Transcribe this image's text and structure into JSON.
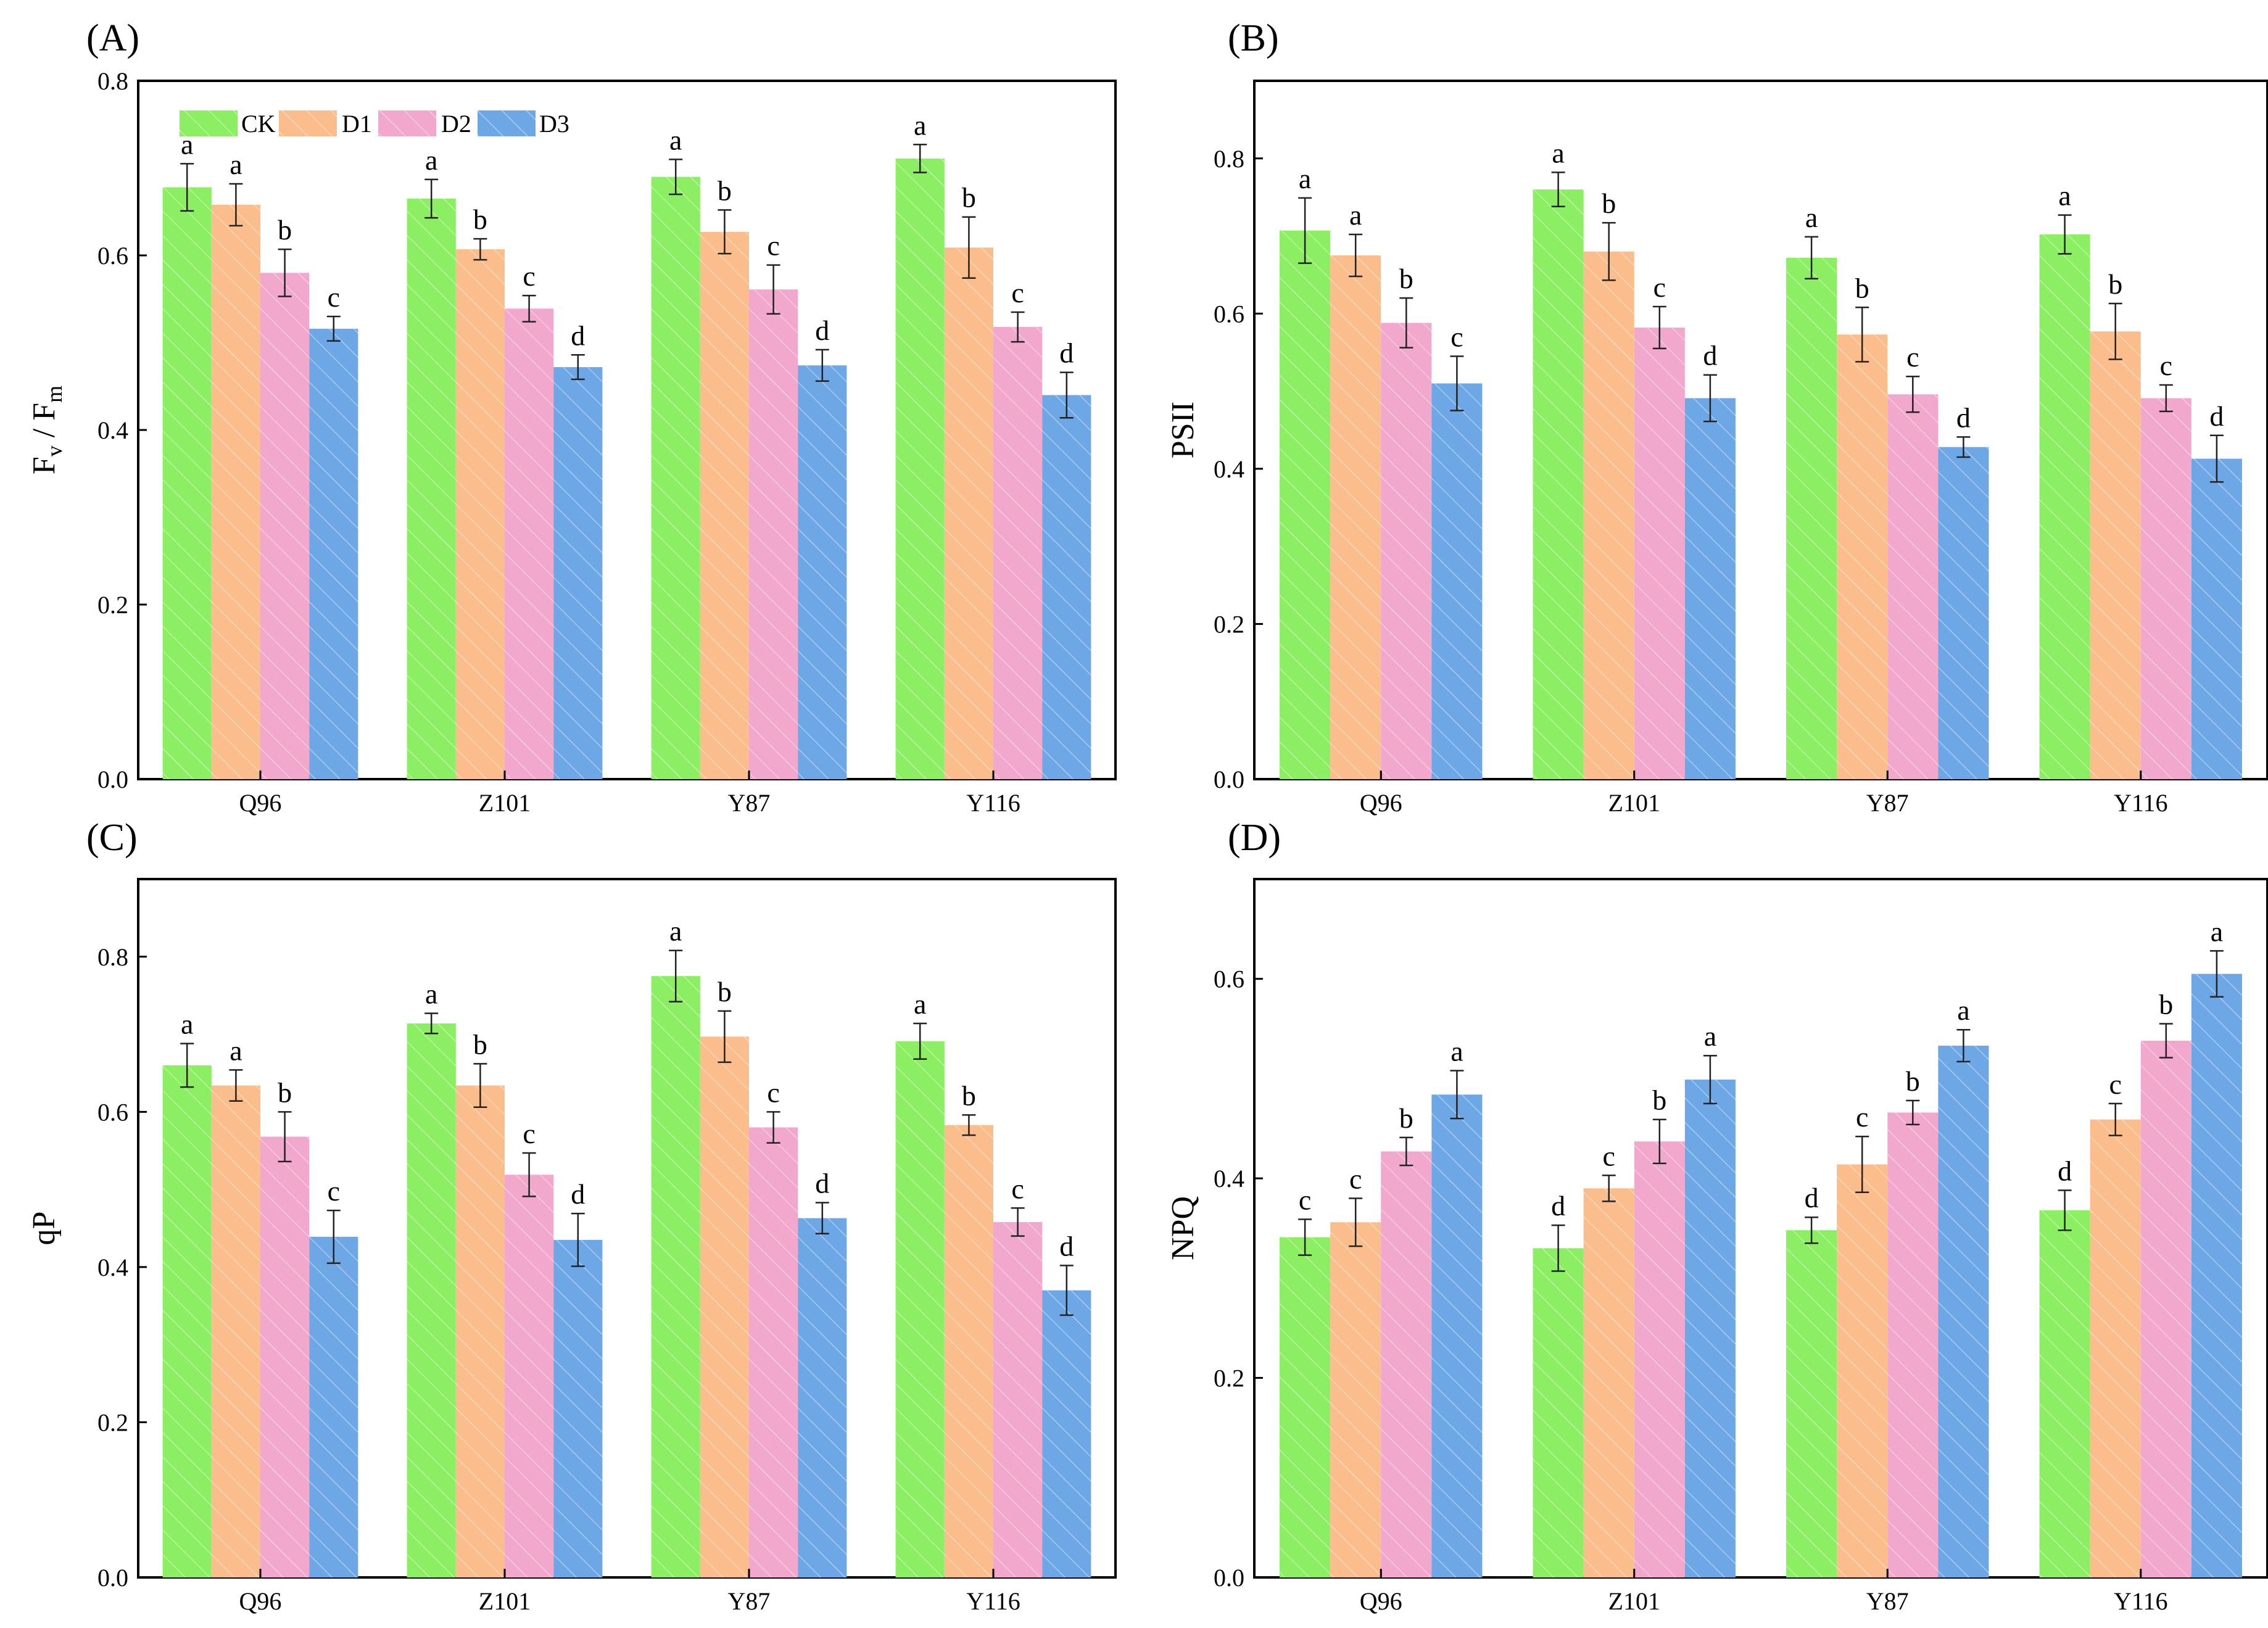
{
  "colors": {
    "CK": "#8cee62",
    "D1": "#fbbd8b",
    "D2": "#f2a7cc",
    "D3": "#6ea7e6"
  },
  "legend": {
    "placement": "top-left",
    "items": [
      "CK",
      "D1",
      "D2",
      "D3"
    ]
  },
  "chart_data": [
    {
      "type": "bar",
      "panel_label": "(A)",
      "title": "",
      "xlabel": "",
      "ylabel": "Fv / Fm",
      "ylabel_main": "F",
      "ylabel_sub1": "v",
      "ylabel_sep": " / F",
      "ylabel_sub2": "m",
      "ylim": [
        0,
        0.8
      ],
      "yticks": [
        "0.0",
        "0.2",
        "0.4",
        "0.6",
        "0.8"
      ],
      "categories": [
        "Q96",
        "Z101",
        "Y87",
        "Y116"
      ],
      "series": [
        {
          "name": "CK",
          "values": [
            0.678,
            0.665,
            0.69,
            0.711
          ],
          "errors": [
            0.027,
            0.022,
            0.02,
            0.016
          ],
          "labels": [
            "a",
            "a",
            "a",
            "a"
          ]
        },
        {
          "name": "D1",
          "values": [
            0.658,
            0.607,
            0.627,
            0.609
          ],
          "errors": [
            0.024,
            0.012,
            0.025,
            0.035
          ],
          "labels": [
            "a",
            "b",
            "b",
            "b"
          ]
        },
        {
          "name": "D2",
          "values": [
            0.58,
            0.539,
            0.561,
            0.518
          ],
          "errors": [
            0.027,
            0.015,
            0.028,
            0.017
          ],
          "labels": [
            "b",
            "c",
            "c",
            "c"
          ]
        },
        {
          "name": "D3",
          "values": [
            0.516,
            0.472,
            0.474,
            0.44
          ],
          "errors": [
            0.014,
            0.014,
            0.018,
            0.026
          ],
          "labels": [
            "c",
            "d",
            "d",
            "d"
          ]
        }
      ]
    },
    {
      "type": "bar",
      "panel_label": "(B)",
      "title": "",
      "xlabel": "",
      "ylabel": "PSII",
      "ylim": [
        0,
        0.9
      ],
      "yticks": [
        "0.0",
        "0.2",
        "0.4",
        "0.6",
        "0.8"
      ],
      "categories": [
        "Q96",
        "Z101",
        "Y87",
        "Y116"
      ],
      "series": [
        {
          "name": "CK",
          "values": [
            0.707,
            0.76,
            0.672,
            0.702
          ],
          "errors": [
            0.042,
            0.022,
            0.027,
            0.025
          ],
          "labels": [
            "a",
            "a",
            "a",
            "a"
          ]
        },
        {
          "name": "D1",
          "values": [
            0.675,
            0.68,
            0.573,
            0.577
          ],
          "errors": [
            0.027,
            0.037,
            0.035,
            0.036
          ],
          "labels": [
            "a",
            "b",
            "b",
            "b"
          ]
        },
        {
          "name": "D2",
          "values": [
            0.588,
            0.582,
            0.496,
            0.491
          ],
          "errors": [
            0.032,
            0.027,
            0.023,
            0.017
          ],
          "labels": [
            "b",
            "c",
            "c",
            "c"
          ]
        },
        {
          "name": "D3",
          "values": [
            0.51,
            0.491,
            0.428,
            0.413
          ],
          "errors": [
            0.035,
            0.03,
            0.013,
            0.03
          ],
          "labels": [
            "c",
            "d",
            "d",
            "d"
          ]
        }
      ]
    },
    {
      "type": "bar",
      "panel_label": "(C)",
      "title": "",
      "xlabel": "",
      "ylabel": "qP",
      "ylim": [
        0,
        0.9
      ],
      "yticks": [
        "0.0",
        "0.2",
        "0.4",
        "0.6",
        "0.8"
      ],
      "categories": [
        "Q96",
        "Z101",
        "Y87",
        "Y116"
      ],
      "series": [
        {
          "name": "CK",
          "values": [
            0.66,
            0.714,
            0.775,
            0.691
          ],
          "errors": [
            0.028,
            0.013,
            0.033,
            0.023
          ],
          "labels": [
            "a",
            "a",
            "a",
            "a"
          ]
        },
        {
          "name": "D1",
          "values": [
            0.634,
            0.634,
            0.697,
            0.583
          ],
          "errors": [
            0.02,
            0.028,
            0.033,
            0.013
          ],
          "labels": [
            "a",
            "b",
            "b",
            "b"
          ]
        },
        {
          "name": "D2",
          "values": [
            0.568,
            0.519,
            0.58,
            0.458
          ],
          "errors": [
            0.032,
            0.028,
            0.02,
            0.018
          ],
          "labels": [
            "b",
            "c",
            "c",
            "c"
          ]
        },
        {
          "name": "D3",
          "values": [
            0.439,
            0.435,
            0.463,
            0.37
          ],
          "errors": [
            0.034,
            0.034,
            0.02,
            0.032
          ],
          "labels": [
            "c",
            "d",
            "d",
            "d"
          ]
        }
      ]
    },
    {
      "type": "bar",
      "panel_label": "(D)",
      "title": "",
      "xlabel": "",
      "ylabel": "NPQ",
      "ylim": [
        0,
        0.7
      ],
      "yticks": [
        "0.0",
        "0.2",
        "0.4",
        "0.6"
      ],
      "categories": [
        "Q96",
        "Z101",
        "Y87",
        "Y116"
      ],
      "series": [
        {
          "name": "CK",
          "values": [
            0.341,
            0.33,
            0.348,
            0.368
          ],
          "errors": [
            0.018,
            0.023,
            0.013,
            0.02
          ],
          "labels": [
            "c",
            "d",
            "d",
            "d"
          ]
        },
        {
          "name": "D1",
          "values": [
            0.356,
            0.39,
            0.414,
            0.459
          ],
          "errors": [
            0.024,
            0.013,
            0.028,
            0.016
          ],
          "labels": [
            "c",
            "c",
            "c",
            "c"
          ]
        },
        {
          "name": "D2",
          "values": [
            0.427,
            0.437,
            0.466,
            0.538
          ],
          "errors": [
            0.014,
            0.022,
            0.012,
            0.017
          ],
          "labels": [
            "b",
            "b",
            "b",
            "b"
          ]
        },
        {
          "name": "D3",
          "values": [
            0.484,
            0.499,
            0.533,
            0.605
          ],
          "errors": [
            0.024,
            0.024,
            0.016,
            0.023
          ],
          "labels": [
            "a",
            "a",
            "a",
            "a"
          ]
        }
      ]
    }
  ]
}
